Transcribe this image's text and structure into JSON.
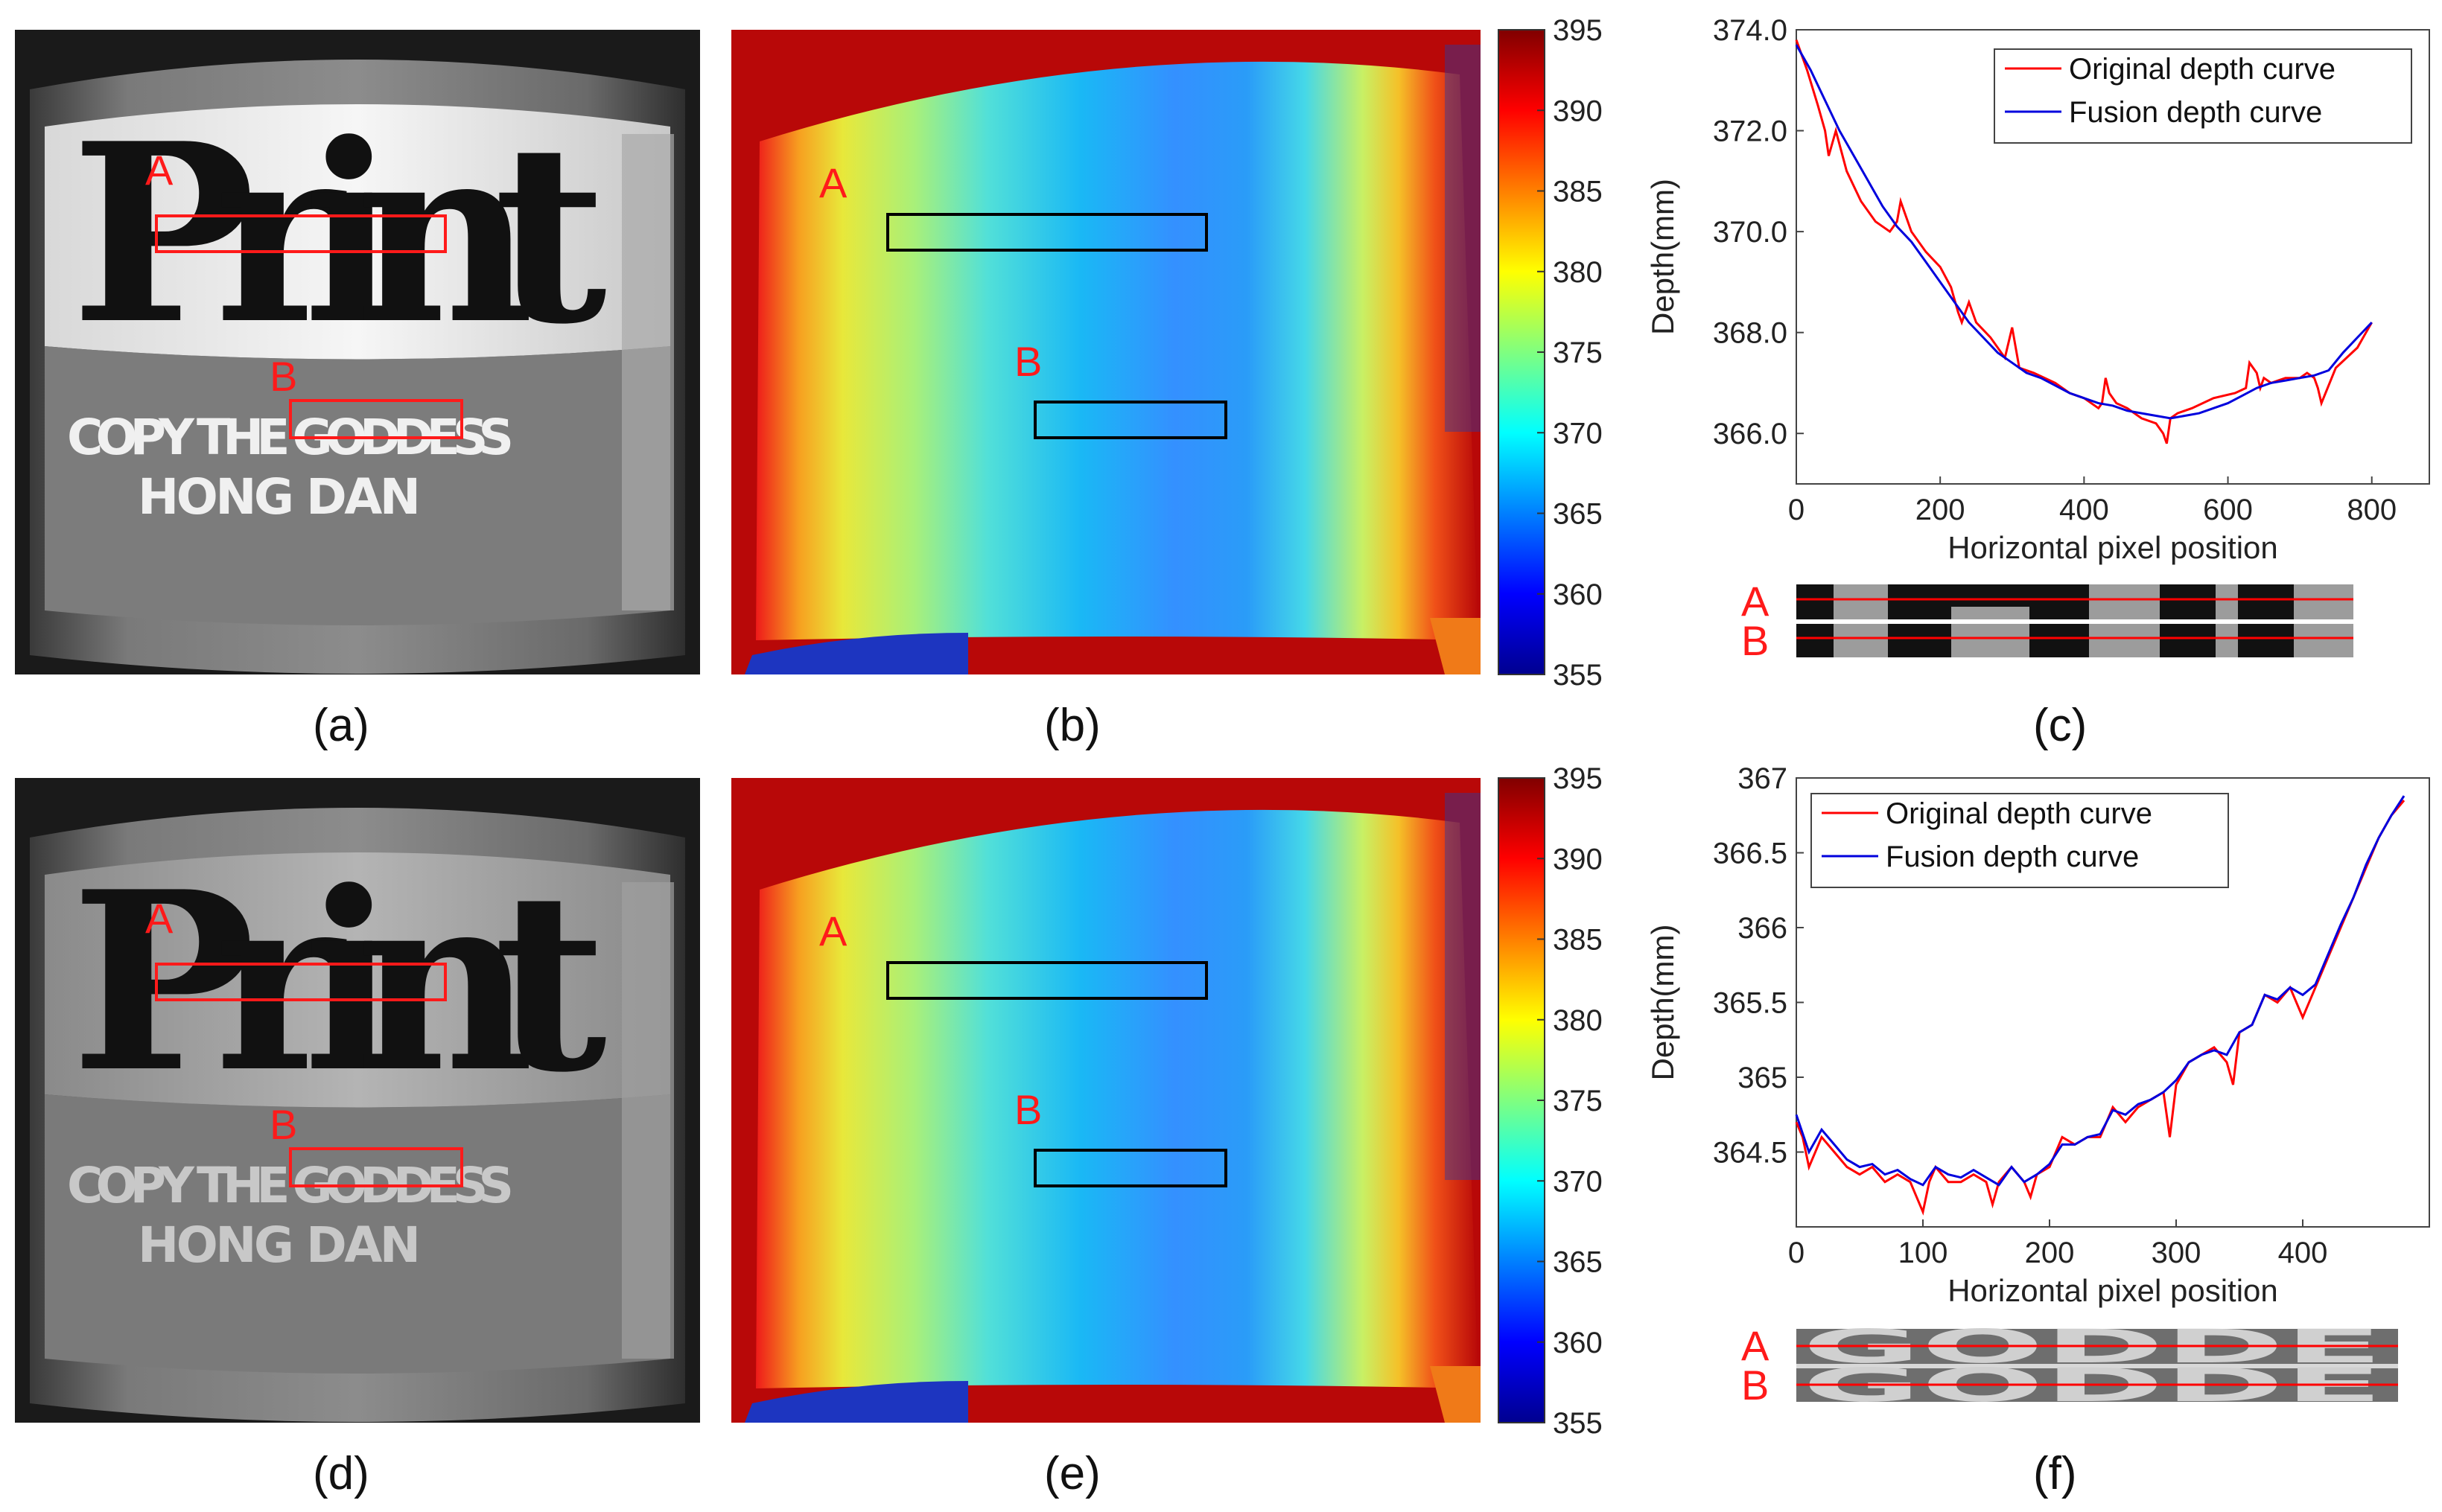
{
  "panels": {
    "a": {
      "caption": "(a)",
      "print_word": "Print",
      "can_line1": "COPY THE GODDESS",
      "can_line2": "HONG DAN",
      "box_labels": [
        "A",
        "B"
      ]
    },
    "b": {
      "caption": "(b)",
      "box_labels": [
        "A",
        "B"
      ]
    },
    "c": {
      "caption": "(c)"
    },
    "d": {
      "caption": "(d)",
      "print_word": "Print",
      "can_line1": "COPY THE GODDESS",
      "can_line2": "HONG DAN",
      "box_labels": [
        "A",
        "B"
      ]
    },
    "e": {
      "caption": "(e)",
      "box_labels": [
        "A",
        "B"
      ]
    },
    "f": {
      "caption": "(f)"
    }
  },
  "colorbar": {
    "ticks": [
      "395",
      "390",
      "385",
      "380",
      "375",
      "370",
      "365",
      "360",
      "355"
    ],
    "range": [
      355,
      395
    ]
  },
  "strip_labels": [
    "A",
    "B"
  ],
  "colors": {
    "original": "#ff0000",
    "fusion": "#0000dd",
    "box_red": "#ff1a1a",
    "box_black": "#000000"
  },
  "chart_data": [
    {
      "id": "c",
      "type": "line",
      "xlabel": "Horizontal pixel position",
      "ylabel": "Depth(mm)",
      "xlim": [
        0,
        880
      ],
      "ylim": [
        365.0,
        374.0
      ],
      "xticks": [
        0,
        200,
        400,
        600,
        800
      ],
      "yticks": [
        366.0,
        368.0,
        370.0,
        372.0,
        374.0
      ],
      "ytick_labels": [
        "366.0",
        "368.0",
        "370.0",
        "372.0",
        "374.0"
      ],
      "legend": [
        "Original depth curve",
        "Fusion depth curve"
      ],
      "series": [
        {
          "name": "Original depth curve",
          "x": [
            0,
            15,
            30,
            40,
            45,
            55,
            70,
            90,
            110,
            130,
            140,
            145,
            150,
            160,
            180,
            200,
            215,
            225,
            230,
            240,
            250,
            270,
            290,
            300,
            310,
            330,
            360,
            380,
            400,
            420,
            425,
            430,
            435,
            445,
            460,
            480,
            500,
            510,
            515,
            520,
            530,
            550,
            580,
            610,
            625,
            630,
            640,
            645,
            650,
            660,
            680,
            700,
            710,
            720,
            725,
            730,
            750,
            780,
            800
          ],
          "y": [
            373.8,
            373.2,
            372.5,
            372.0,
            371.5,
            372.0,
            371.2,
            370.6,
            370.2,
            370.0,
            370.2,
            370.6,
            370.4,
            370.0,
            369.6,
            369.3,
            368.9,
            368.4,
            368.2,
            368.6,
            368.2,
            367.9,
            367.5,
            368.1,
            367.3,
            367.2,
            367.0,
            366.8,
            366.7,
            366.5,
            366.6,
            367.1,
            366.8,
            366.6,
            366.5,
            366.3,
            366.2,
            366.0,
            365.8,
            366.3,
            366.4,
            366.5,
            366.7,
            366.8,
            366.9,
            367.4,
            367.2,
            366.9,
            367.1,
            367.0,
            367.1,
            367.1,
            367.2,
            367.1,
            366.9,
            366.6,
            367.3,
            367.7,
            368.2
          ]
        },
        {
          "name": "Fusion depth curve",
          "x": [
            0,
            20,
            40,
            60,
            80,
            100,
            120,
            140,
            160,
            180,
            200,
            220,
            240,
            260,
            280,
            300,
            320,
            340,
            360,
            380,
            400,
            420,
            440,
            460,
            480,
            500,
            520,
            540,
            560,
            580,
            600,
            620,
            640,
            660,
            680,
            700,
            720,
            740,
            760,
            780,
            800
          ],
          "y": [
            373.7,
            373.2,
            372.6,
            372.0,
            371.5,
            371.0,
            370.5,
            370.1,
            369.8,
            369.4,
            369.0,
            368.6,
            368.2,
            367.9,
            367.6,
            367.4,
            367.2,
            367.1,
            366.95,
            366.8,
            366.7,
            366.6,
            366.55,
            366.45,
            366.4,
            366.35,
            366.3,
            366.35,
            366.4,
            366.5,
            366.6,
            366.75,
            366.9,
            367.0,
            367.05,
            367.1,
            367.15,
            367.25,
            367.6,
            367.9,
            368.2
          ]
        }
      ]
    },
    {
      "id": "f",
      "type": "line",
      "xlabel": "Horizontal pixel position",
      "ylabel": "Depth(mm)",
      "xlim": [
        0,
        500
      ],
      "ylim": [
        364.0,
        367.0
      ],
      "xticks": [
        0,
        100,
        200,
        300,
        400
      ],
      "yticks": [
        364.5,
        365,
        365.5,
        366,
        366.5,
        367
      ],
      "ytick_labels": [
        "364.5",
        "365",
        "365.5",
        "366",
        "366.5",
        "367"
      ],
      "legend": [
        "Original depth curve",
        "Fusion depth curve"
      ],
      "series": [
        {
          "name": "Original depth curve",
          "x": [
            0,
            5,
            10,
            20,
            30,
            40,
            50,
            60,
            70,
            80,
            90,
            95,
            100,
            105,
            110,
            120,
            130,
            140,
            150,
            155,
            160,
            170,
            180,
            185,
            190,
            200,
            210,
            220,
            230,
            240,
            250,
            260,
            270,
            280,
            290,
            295,
            300,
            310,
            320,
            330,
            340,
            345,
            350,
            360,
            370,
            380,
            390,
            400,
            410,
            420,
            430,
            440,
            450,
            460,
            470,
            480
          ],
          "y": [
            364.7,
            364.6,
            364.4,
            364.6,
            364.5,
            364.4,
            364.35,
            364.4,
            364.3,
            364.35,
            364.3,
            364.2,
            364.1,
            364.3,
            364.4,
            364.3,
            364.3,
            364.35,
            364.3,
            364.15,
            364.3,
            364.4,
            364.3,
            364.2,
            364.35,
            364.4,
            364.6,
            364.55,
            364.6,
            364.6,
            364.8,
            364.7,
            364.8,
            364.85,
            364.9,
            364.6,
            364.95,
            365.1,
            365.15,
            365.2,
            365.1,
            364.95,
            365.3,
            365.35,
            365.55,
            365.5,
            365.6,
            365.4,
            365.6,
            365.8,
            366.0,
            366.2,
            366.4,
            366.6,
            366.75,
            366.85
          ]
        },
        {
          "name": "Fusion depth curve",
          "x": [
            0,
            10,
            20,
            30,
            40,
            50,
            60,
            70,
            80,
            90,
            100,
            110,
            120,
            130,
            140,
            150,
            160,
            170,
            180,
            190,
            200,
            210,
            220,
            230,
            240,
            250,
            260,
            270,
            280,
            290,
            300,
            310,
            320,
            330,
            340,
            350,
            360,
            370,
            380,
            390,
            400,
            410,
            420,
            430,
            440,
            450,
            460,
            470,
            480
          ],
          "y": [
            364.75,
            364.5,
            364.65,
            364.55,
            364.45,
            364.4,
            364.42,
            364.35,
            364.38,
            364.32,
            364.28,
            364.4,
            364.35,
            364.33,
            364.38,
            364.33,
            364.28,
            364.4,
            364.3,
            364.35,
            364.42,
            364.55,
            364.55,
            364.6,
            364.62,
            364.78,
            364.75,
            364.82,
            364.85,
            364.9,
            364.98,
            365.1,
            365.15,
            365.18,
            365.15,
            365.3,
            365.35,
            365.55,
            365.52,
            365.6,
            365.55,
            365.62,
            365.82,
            366.02,
            366.2,
            366.42,
            366.6,
            366.75,
            366.88
          ]
        }
      ]
    }
  ]
}
